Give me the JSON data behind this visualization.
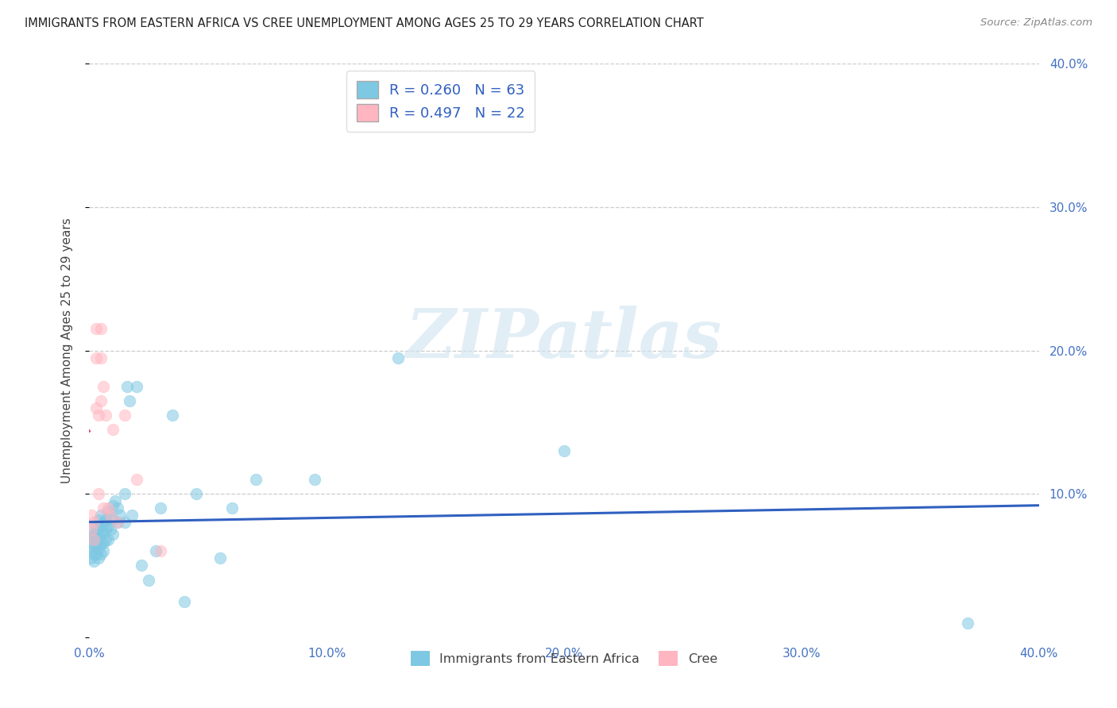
{
  "title": "IMMIGRANTS FROM EASTERN AFRICA VS CREE UNEMPLOYMENT AMONG AGES 25 TO 29 YEARS CORRELATION CHART",
  "source": "Source: ZipAtlas.com",
  "ylabel": "Unemployment Among Ages 25 to 29 years",
  "xlim": [
    0.0,
    0.4
  ],
  "ylim": [
    0.0,
    0.4
  ],
  "blue_R": 0.26,
  "blue_N": 63,
  "pink_R": 0.497,
  "pink_N": 22,
  "blue_color": "#7ec8e3",
  "pink_color": "#ffb6c1",
  "blue_line_color": "#3060c0",
  "pink_line_color": "#e05080",
  "pink_dash_color": "#cccccc",
  "watermark_text": "ZIPatlas",
  "legend_label_blue": "Immigrants from Eastern Africa",
  "legend_label_pink": "Cree",
  "blue_x": [
    0.001,
    0.001,
    0.001,
    0.001,
    0.001,
    0.002,
    0.002,
    0.002,
    0.002,
    0.002,
    0.003,
    0.003,
    0.003,
    0.003,
    0.004,
    0.004,
    0.004,
    0.004,
    0.004,
    0.005,
    0.005,
    0.005,
    0.005,
    0.005,
    0.006,
    0.006,
    0.006,
    0.006,
    0.007,
    0.007,
    0.007,
    0.008,
    0.008,
    0.008,
    0.009,
    0.009,
    0.01,
    0.01,
    0.01,
    0.011,
    0.012,
    0.012,
    0.013,
    0.015,
    0.015,
    0.016,
    0.017,
    0.018,
    0.02,
    0.022,
    0.025,
    0.028,
    0.03,
    0.035,
    0.04,
    0.045,
    0.055,
    0.06,
    0.07,
    0.095,
    0.13,
    0.2,
    0.37
  ],
  "blue_y": [
    0.07,
    0.075,
    0.065,
    0.06,
    0.055,
    0.072,
    0.068,
    0.063,
    0.058,
    0.053,
    0.078,
    0.072,
    0.065,
    0.058,
    0.082,
    0.075,
    0.068,
    0.062,
    0.055,
    0.085,
    0.078,
    0.072,
    0.065,
    0.058,
    0.08,
    0.073,
    0.066,
    0.06,
    0.082,
    0.075,
    0.068,
    0.088,
    0.078,
    0.068,
    0.085,
    0.075,
    0.092,
    0.082,
    0.072,
    0.095,
    0.09,
    0.08,
    0.085,
    0.1,
    0.08,
    0.175,
    0.165,
    0.085,
    0.175,
    0.05,
    0.04,
    0.06,
    0.09,
    0.155,
    0.025,
    0.1,
    0.055,
    0.09,
    0.11,
    0.11,
    0.195,
    0.13,
    0.01
  ],
  "pink_x": [
    0.001,
    0.001,
    0.002,
    0.002,
    0.003,
    0.003,
    0.003,
    0.004,
    0.004,
    0.005,
    0.005,
    0.005,
    0.006,
    0.006,
    0.007,
    0.008,
    0.009,
    0.01,
    0.012,
    0.015,
    0.02,
    0.03
  ],
  "pink_y": [
    0.085,
    0.075,
    0.08,
    0.068,
    0.215,
    0.195,
    0.16,
    0.155,
    0.1,
    0.215,
    0.195,
    0.165,
    0.175,
    0.09,
    0.155,
    0.09,
    0.085,
    0.145,
    0.08,
    0.155,
    0.11,
    0.06
  ]
}
